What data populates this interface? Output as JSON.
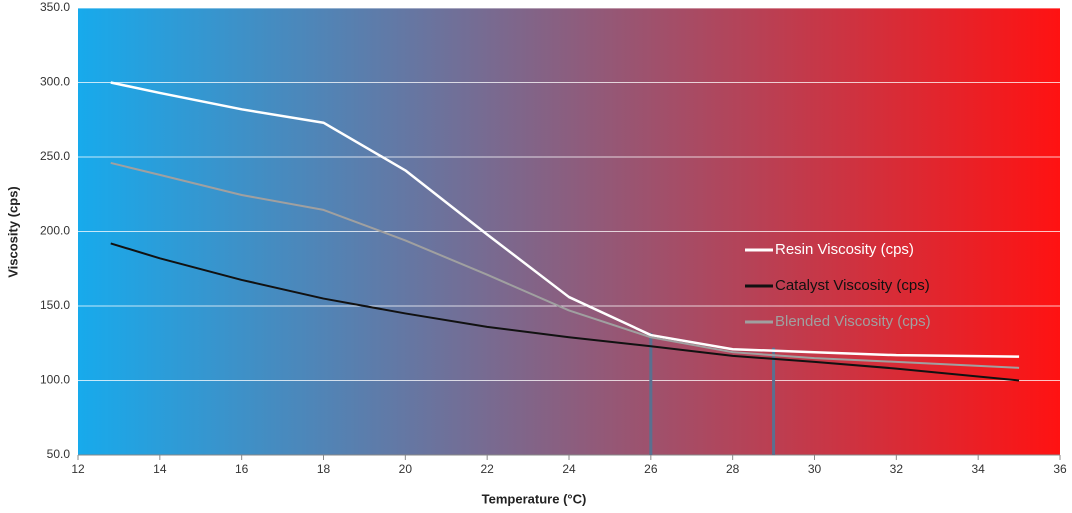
{
  "chart_data": {
    "type": "line",
    "x_label": "Temperature (°C)",
    "y_label": "Viscosity (cps)",
    "x": [
      12.8,
      14,
      16,
      18,
      20,
      22,
      24,
      26,
      28,
      30,
      32,
      35
    ],
    "series": [
      {
        "name": "Resin Viscosity (cps)",
        "color": "#ffffff",
        "values": [
          300,
          293,
          282,
          273,
          241,
          198,
          156,
          130.5,
          121,
          119,
          117,
          116
        ]
      },
      {
        "name": "Catalyst Viscosity (cps)",
        "color": "#111111",
        "values": [
          192,
          182,
          167.5,
          155,
          145,
          136,
          129,
          123,
          116.5,
          112.5,
          108,
          100
        ]
      },
      {
        "name": "Blended Viscosity (cps)",
        "color": "#a0a0a0",
        "values": [
          246,
          238,
          224.5,
          214.5,
          194,
          171,
          147,
          129,
          119,
          115,
          112.5,
          108.5
        ]
      }
    ],
    "reference_lines": [
      {
        "x": 26,
        "y": 132
      },
      {
        "x": 29,
        "y": 122
      }
    ],
    "reference_color": "#5a7090",
    "xlim": [
      12,
      36
    ],
    "xticks": [
      12,
      14,
      16,
      18,
      20,
      22,
      24,
      26,
      28,
      30,
      32,
      34,
      36
    ],
    "ylim": [
      50,
      350
    ],
    "yticks": [
      {
        "value": 50,
        "label": "50.0"
      },
      {
        "value": 100,
        "label": "100.0"
      },
      {
        "value": 150,
        "label": "150.0"
      },
      {
        "value": 200,
        "label": "200.0"
      },
      {
        "value": 250,
        "label": "250.0"
      },
      {
        "value": 300,
        "label": "300.0"
      },
      {
        "value": 350,
        "label": "350.0"
      }
    ],
    "grid": true,
    "legend": "right",
    "background": [
      "#17aaec",
      "#ff1212"
    ]
  }
}
